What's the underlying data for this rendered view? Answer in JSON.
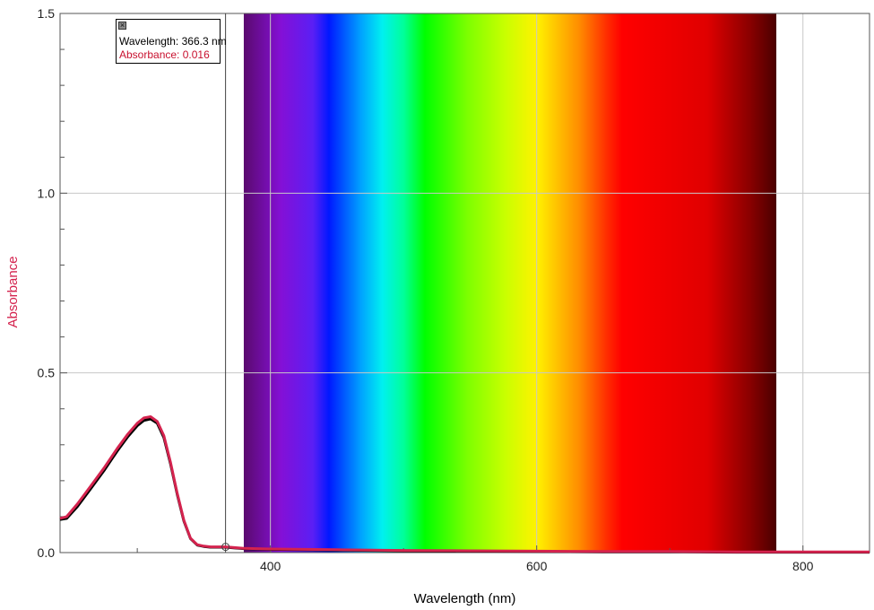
{
  "chart_data": {
    "type": "line",
    "xlabel": "Wavelength (nm)",
    "ylabel": "Absorbance",
    "xlim": [
      242,
      850
    ],
    "ylim": [
      0,
      1.5
    ],
    "x_ticks": [
      400,
      600,
      800
    ],
    "y_ticks": [
      0.0,
      0.5,
      1.0,
      1.5
    ],
    "x_tick_labels": [
      "400",
      "600",
      "800"
    ],
    "y_tick_labels": [
      "0.0",
      "0.5",
      "1.0",
      "1.5"
    ],
    "grid": true,
    "spectrum_band": {
      "from": 380,
      "to": 780
    },
    "series": [
      {
        "color": "#d4234e",
        "x": [
          242,
          247,
          255,
          265,
          275,
          285,
          293,
          300,
          305,
          310,
          315,
          320,
          325,
          330,
          335,
          340,
          345,
          350,
          355,
          360,
          366,
          380,
          400,
          450,
          500,
          550,
          600,
          650,
          700,
          750,
          800,
          850
        ],
        "y": [
          0.095,
          0.1,
          0.135,
          0.185,
          0.235,
          0.29,
          0.33,
          0.36,
          0.375,
          0.378,
          0.365,
          0.325,
          0.25,
          0.165,
          0.09,
          0.04,
          0.022,
          0.018,
          0.016,
          0.016,
          0.016,
          0.012,
          0.01,
          0.008,
          0.006,
          0.005,
          0.004,
          0.003,
          0.003,
          0.002,
          0.002,
          0.002
        ]
      },
      {
        "color": "#000000",
        "x": [
          242,
          247,
          255,
          265,
          275,
          285,
          293,
          300,
          305,
          310,
          315,
          320,
          325,
          330,
          335,
          340,
          345,
          350,
          355,
          360,
          366,
          380,
          400,
          450,
          500,
          550,
          600,
          650,
          700,
          750,
          800,
          850
        ],
        "y": [
          0.092,
          0.095,
          0.128,
          0.178,
          0.228,
          0.283,
          0.323,
          0.353,
          0.368,
          0.372,
          0.36,
          0.32,
          0.246,
          0.162,
          0.088,
          0.039,
          0.021,
          0.017,
          0.015,
          0.015,
          0.015,
          0.011,
          0.009,
          0.007,
          0.005,
          0.004,
          0.003,
          0.002,
          0.002,
          0.001,
          0.001,
          0.001
        ]
      }
    ],
    "cursor": {
      "x": 366.3,
      "y": 0.016,
      "wavelength_text": "Wavelength: 366.3 nm",
      "absorbance_text": "Absorbance: 0.016"
    }
  },
  "colors": {
    "ylabel": "#d4234e",
    "absorbance_readout": "#c8102e",
    "xlabel": "#000000"
  }
}
